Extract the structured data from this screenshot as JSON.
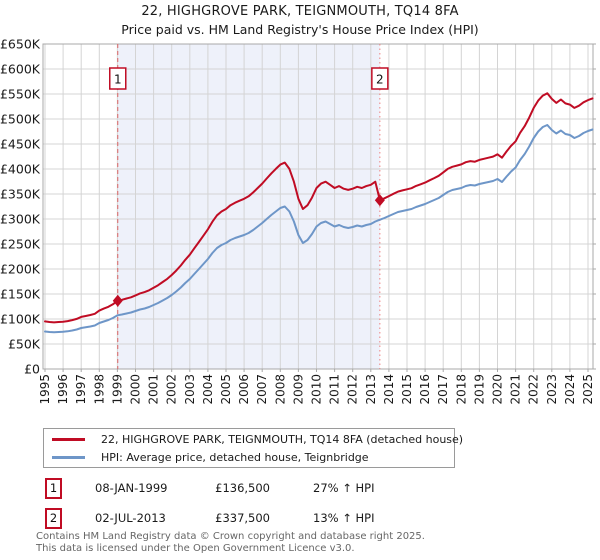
{
  "title": "22, HIGHGROVE PARK, TEIGNMOUTH, TQ14 8FA",
  "subtitle": "Price paid vs. HM Land Registry's House Price Index (HPI)",
  "chart_data": {
    "type": "line",
    "x_start": 1995,
    "x_step": 0.25,
    "x_axis": {
      "tick_years": [
        1995,
        1996,
        1997,
        1998,
        1999,
        2000,
        2001,
        2002,
        2003,
        2004,
        2005,
        2006,
        2007,
        2008,
        2009,
        2010,
        2011,
        2012,
        2013,
        2014,
        2015,
        2016,
        2017,
        2018,
        2019,
        2020,
        2021,
        2022,
        2023,
        2024,
        2025
      ]
    },
    "y_axis": {
      "unit": "GBP thousands",
      "range": [
        0,
        650
      ],
      "tick_values": [
        0,
        50,
        100,
        150,
        200,
        250,
        300,
        350,
        400,
        450,
        500,
        550,
        600,
        650
      ],
      "ticks": [
        "£0",
        "£50K",
        "£100K",
        "£150K",
        "£200K",
        "£250K",
        "£300K",
        "£350K",
        "£400K",
        "£450K",
        "£500K",
        "£550K",
        "£600K",
        "£650K"
      ]
    },
    "grid": true,
    "legend_position": "bottom",
    "shaded_region": {
      "from": 1999.02,
      "to": 2013.5,
      "color": "#eef1fa"
    },
    "sale_markers": [
      {
        "num": "1",
        "x": 1999.02,
        "value": 136.5,
        "line_style": "dashed"
      },
      {
        "num": "2",
        "x": 2013.5,
        "value": 337.5,
        "line_style": "dotted"
      }
    ],
    "series": [
      {
        "name": "22, HIGHGROVE PARK, TEIGNMOUTH, TQ14 8FA (detached house)",
        "color": "#c00c24",
        "values": [
          95.3,
          94.0,
          93.3,
          94.0,
          94.6,
          95.9,
          97.8,
          100.3,
          104.1,
          106.0,
          108.0,
          110.5,
          116.8,
          120.7,
          124.5,
          129.5,
          136.5,
          138.4,
          141.0,
          143.5,
          147.3,
          151.1,
          153.7,
          157.5,
          162.6,
          167.6,
          174.0,
          180.3,
          188.0,
          196.9,
          207.0,
          218.4,
          228.6,
          241.3,
          254.0,
          266.7,
          279.4,
          294.6,
          307.3,
          315.0,
          320.0,
          327.7,
          332.7,
          336.6,
          340.4,
          345.4,
          353.1,
          362.0,
          370.8,
          381.0,
          391.2,
          400.1,
          408.9,
          412.8,
          400.1,
          374.7,
          340.4,
          320.0,
          327.7,
          342.9,
          362.0,
          370.8,
          374.7,
          368.3,
          362.0,
          365.8,
          360.7,
          358.1,
          360.7,
          364.5,
          362.0,
          365.8,
          368.3,
          374.7,
          337.5,
          341.3,
          345.8,
          350.3,
          354.8,
          357.1,
          359.3,
          361.6,
          366.1,
          369.5,
          372.9,
          377.4,
          381.9,
          386.5,
          393.2,
          400.2,
          404.5,
          406.8,
          409.1,
          413.6,
          415.8,
          414.7,
          418.1,
          420.4,
          422.6,
          424.9,
          429.4,
          422.6,
          435.1,
          446.4,
          455.4,
          472.3,
          485.9,
          502.9,
          522.1,
          536.8,
          546.9,
          551.4,
          540.1,
          532.2,
          539.0,
          531.1,
          528.8,
          522.1,
          526.6,
          533.4,
          537.9,
          541.3
        ]
      },
      {
        "name": "HPI: Average price, detached house, Teignbridge",
        "color": "#6e96c8",
        "values": [
          75,
          74,
          73.5,
          74,
          74.5,
          75.5,
          77,
          79,
          82,
          83.5,
          85,
          87,
          92,
          95,
          98,
          102,
          107.5,
          109,
          111,
          113,
          116,
          119,
          121,
          124,
          128,
          132,
          137,
          142,
          148,
          155,
          163,
          172,
          180,
          190,
          200,
          210,
          220,
          232,
          242,
          248,
          252,
          258,
          262,
          265,
          268,
          272,
          278,
          285,
          292,
          300,
          308,
          315,
          322,
          325,
          315,
          295,
          268,
          252,
          258,
          270,
          285,
          292,
          295,
          290,
          285,
          288,
          284,
          282,
          284,
          287,
          285,
          288,
          290,
          295,
          298.7,
          302,
          306,
          310,
          314,
          316,
          318,
          320,
          324,
          327,
          330,
          334,
          338,
          342,
          348,
          354,
          358,
          360,
          362,
          366,
          368,
          367,
          370,
          372,
          374,
          376,
          380,
          374,
          385,
          395,
          403,
          418,
          430,
          445,
          462,
          475,
          484,
          488,
          478,
          471,
          477,
          470,
          468,
          462,
          466,
          472,
          476,
          479
        ]
      }
    ]
  },
  "legend": {
    "items": [
      {
        "label": "22, HIGHGROVE PARK, TEIGNMOUTH, TQ14 8FA (detached house)",
        "color": "#c00c24"
      },
      {
        "label": "HPI: Average price, detached house, Teignbridge",
        "color": "#6e96c8"
      }
    ]
  },
  "annotations": [
    {
      "num": "1",
      "date": "08-JAN-1999",
      "price": "£136,500",
      "hpi": "27% ↑ HPI"
    },
    {
      "num": "2",
      "date": "02-JUL-2013",
      "price": "£337,500",
      "hpi": "13% ↑ HPI"
    }
  ],
  "footer": {
    "line1": "Contains HM Land Registry data © Crown copyright and database right 2025.",
    "line2": "This data is licensed under the Open Government Licence v3.0."
  },
  "colors": {
    "grid": "#d4d4d4",
    "plot_border": "#a8a8a8",
    "marker_line_1": "#dd6565",
    "marker_line_2": "#ee8080",
    "text": "#1a1a1a",
    "footer_text": "#666666",
    "shaded_band": "#eef1fa"
  }
}
